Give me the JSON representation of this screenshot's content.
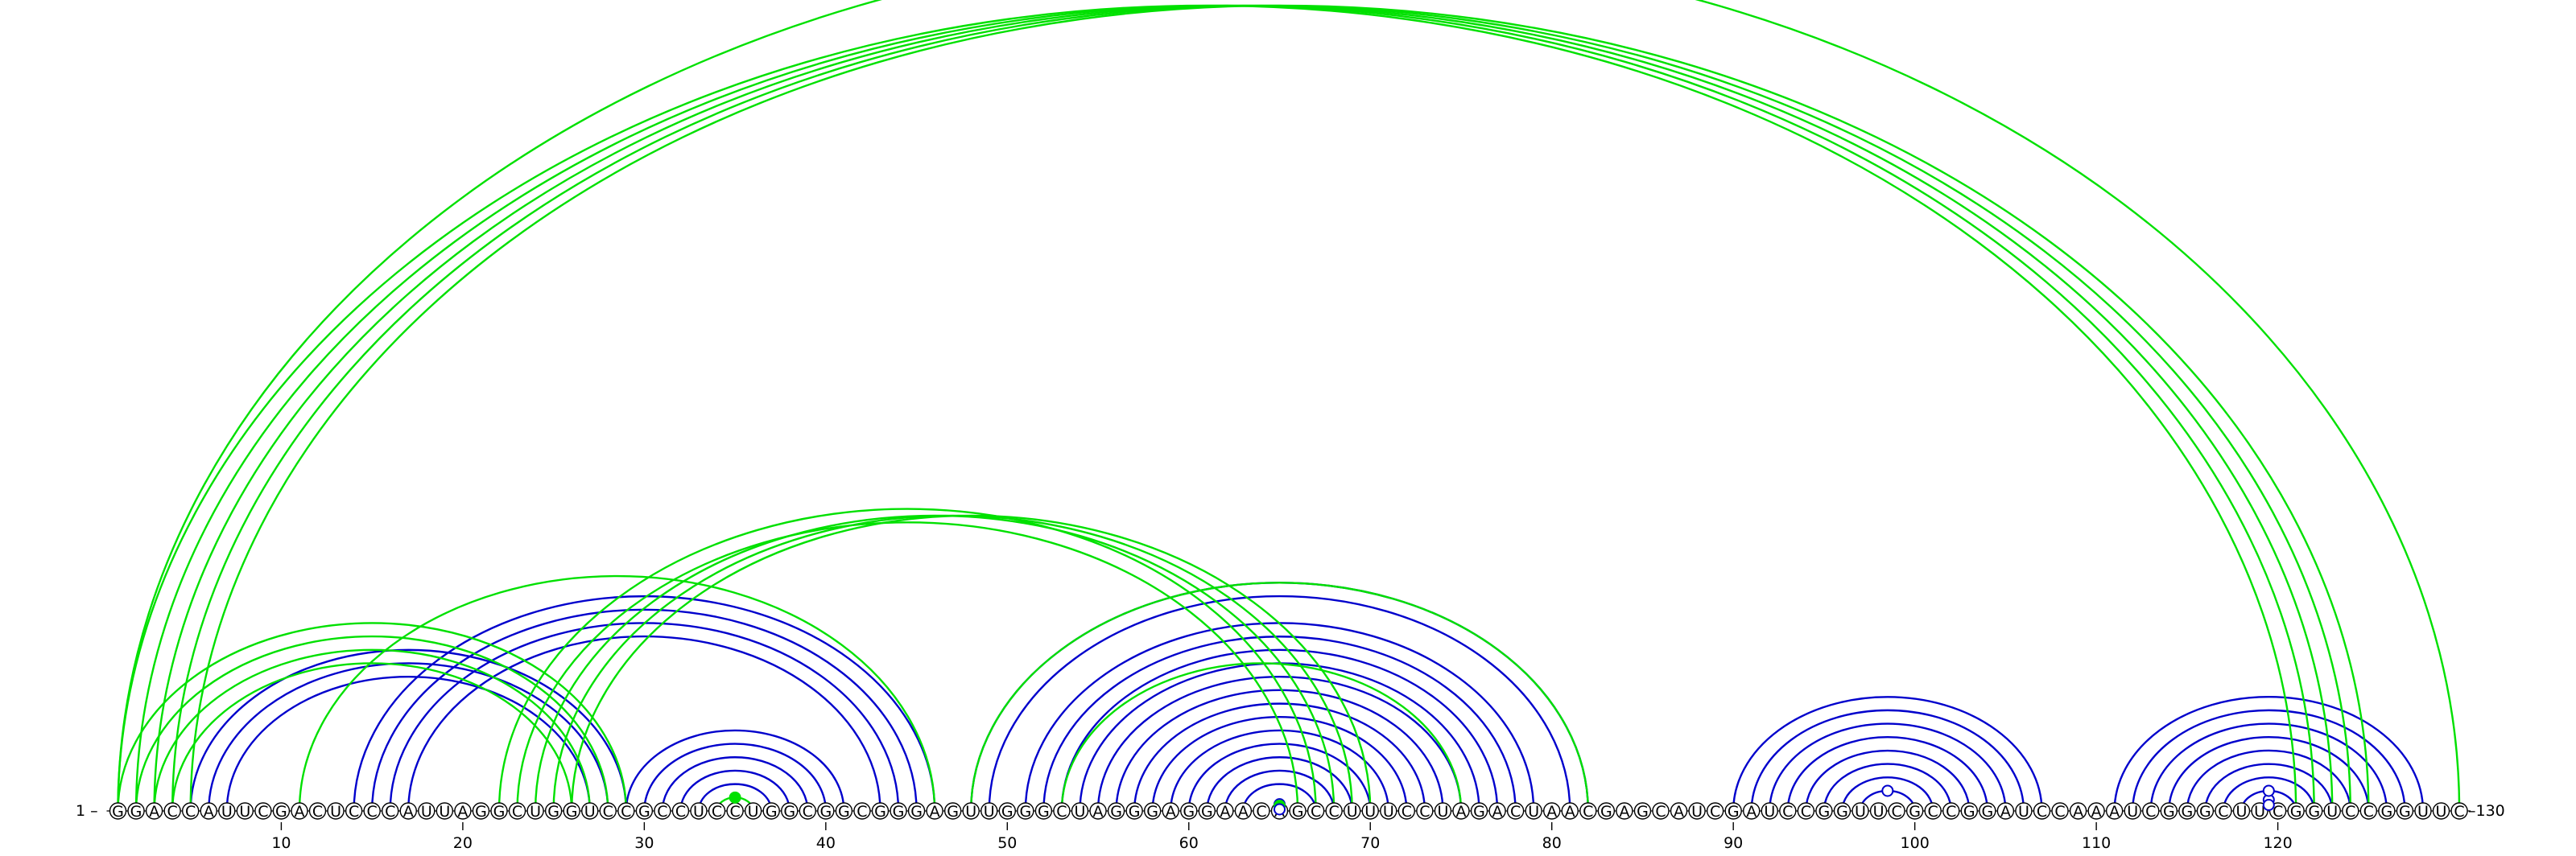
{
  "sequence": "GGACCAUUCGACUCCCAUUAGGCUGGUCCGCCUCCUGGCGGCGGGAGUUGGGCUAGGGAGGAACAGCCUUUCCUAGACUAACGAGCAUCGAUCCGGUUCGCCGGAUCCAAAUCGGGCUUCGGUCCGGUUC",
  "start_label": "1 –",
  "end_label": "–130",
  "ticks": [
    10,
    20,
    30,
    40,
    50,
    60,
    70,
    80,
    90,
    100,
    110,
    120
  ],
  "colors": {
    "blue": "#0000cc",
    "green": "#00e000"
  },
  "arcs": [
    {
      "i": 5,
      "j": 29,
      "c": "blue"
    },
    {
      "i": 6,
      "j": 28,
      "c": "blue"
    },
    {
      "i": 7,
      "j": 27,
      "c": "blue"
    },
    {
      "i": 14,
      "j": 46,
      "c": "blue"
    },
    {
      "i": 15,
      "j": 45,
      "c": "blue"
    },
    {
      "i": 16,
      "j": 44,
      "c": "blue"
    },
    {
      "i": 17,
      "j": 43,
      "c": "blue"
    },
    {
      "i": 29,
      "j": 41,
      "c": "blue"
    },
    {
      "i": 30,
      "j": 40,
      "c": "blue"
    },
    {
      "i": 31,
      "j": 39,
      "c": "blue"
    },
    {
      "i": 32,
      "j": 38,
      "c": "blue"
    },
    {
      "i": 33,
      "j": 37,
      "c": "blue"
    },
    {
      "i": 48,
      "j": 82,
      "c": "blue"
    },
    {
      "i": 49,
      "j": 81,
      "c": "blue"
    },
    {
      "i": 51,
      "j": 79,
      "c": "blue"
    },
    {
      "i": 52,
      "j": 78,
      "c": "blue"
    },
    {
      "i": 53,
      "j": 77,
      "c": "blue"
    },
    {
      "i": 54,
      "j": 76,
      "c": "blue"
    },
    {
      "i": 55,
      "j": 75,
      "c": "blue"
    },
    {
      "i": 56,
      "j": 74,
      "c": "blue"
    },
    {
      "i": 57,
      "j": 73,
      "c": "blue"
    },
    {
      "i": 58,
      "j": 72,
      "c": "blue"
    },
    {
      "i": 59,
      "j": 71,
      "c": "blue"
    },
    {
      "i": 60,
      "j": 70,
      "c": "blue"
    },
    {
      "i": 61,
      "j": 69,
      "c": "blue"
    },
    {
      "i": 62,
      "j": 68,
      "c": "blue"
    },
    {
      "i": 63,
      "j": 67,
      "c": "blue"
    },
    {
      "i": 90,
      "j": 107,
      "c": "blue"
    },
    {
      "i": 91,
      "j": 106,
      "c": "blue"
    },
    {
      "i": 92,
      "j": 105,
      "c": "blue"
    },
    {
      "i": 93,
      "j": 104,
      "c": "blue"
    },
    {
      "i": 94,
      "j": 103,
      "c": "blue"
    },
    {
      "i": 95,
      "j": 102,
      "c": "blue"
    },
    {
      "i": 96,
      "j": 101,
      "c": "blue"
    },
    {
      "i": 97,
      "j": 100,
      "c": "blue"
    },
    {
      "i": 111,
      "j": 128,
      "c": "blue"
    },
    {
      "i": 112,
      "j": 127,
      "c": "blue"
    },
    {
      "i": 113,
      "j": 126,
      "c": "blue"
    },
    {
      "i": 114,
      "j": 125,
      "c": "blue"
    },
    {
      "i": 115,
      "j": 124,
      "c": "blue"
    },
    {
      "i": 116,
      "j": 123,
      "c": "blue"
    },
    {
      "i": 117,
      "j": 122,
      "c": "blue"
    },
    {
      "i": 118,
      "j": 121,
      "c": "blue"
    },
    {
      "i": 1,
      "j": 121,
      "c": "green"
    },
    {
      "i": 2,
      "j": 122,
      "c": "green"
    },
    {
      "i": 3,
      "j": 123,
      "c": "green"
    },
    {
      "i": 4,
      "j": 124,
      "c": "green"
    },
    {
      "i": 5,
      "j": 125,
      "c": "green"
    },
    {
      "i": 1,
      "j": 130,
      "c": "green"
    },
    {
      "i": 1,
      "j": 29,
      "c": "green"
    },
    {
      "i": 2,
      "j": 28,
      "c": "green"
    },
    {
      "i": 3,
      "j": 27,
      "c": "green"
    },
    {
      "i": 4,
      "j": 26,
      "c": "green"
    },
    {
      "i": 11,
      "j": 46,
      "c": "green"
    },
    {
      "i": 22,
      "j": 67,
      "c": "green"
    },
    {
      "i": 23,
      "j": 66,
      "c": "green"
    },
    {
      "i": 24,
      "j": 68,
      "c": "green"
    },
    {
      "i": 25,
      "j": 69,
      "c": "green"
    },
    {
      "i": 26,
      "j": 70,
      "c": "green"
    },
    {
      "i": 48,
      "j": 82,
      "c": "green"
    },
    {
      "i": 53,
      "j": 75,
      "c": "green"
    },
    {
      "i": 34,
      "j": 36,
      "c": "green"
    }
  ],
  "markers": [
    {
      "i": 64,
      "j": 66,
      "r": 0.5,
      "c": "blue",
      "filled": false
    },
    {
      "i": 64,
      "j": 66,
      "r": 0.38,
      "c": "green",
      "filled": true
    },
    {
      "i": 64,
      "j": 66,
      "r": 0.12,
      "c": "blue",
      "filled": false
    },
    {
      "i": 97,
      "j": 100,
      "r": 1.0,
      "c": "blue",
      "filled": false
    },
    {
      "i": 118,
      "j": 121,
      "r": 0.55,
      "c": "blue",
      "filled": false
    },
    {
      "i": 118,
      "j": 121,
      "r": 0.3,
      "c": "blue",
      "filled": false
    },
    {
      "i": 118,
      "j": 121,
      "r": 1.0,
      "c": "blue",
      "filled": false
    },
    {
      "i": 34,
      "j": 36,
      "r": 1.0,
      "c": "green",
      "filled": true
    },
    {
      "i": 1,
      "j": 130,
      "r": 0.97,
      "c": "green",
      "filled": false
    }
  ]
}
